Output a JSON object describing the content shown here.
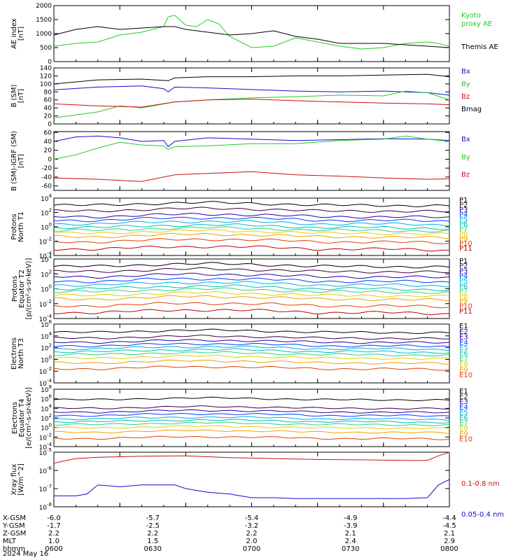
{
  "footer": {
    "date": "2024 May 16"
  },
  "ephemeris": {
    "rows": [
      {
        "label": "X-GSM",
        "values": [
          "-6.0",
          "-5.7",
          "-5.4",
          "-4.9",
          "-4.4"
        ]
      },
      {
        "label": "Y-GSM",
        "values": [
          "-1.7",
          "-2.5",
          "-3.2",
          "-3.9",
          "-4.5"
        ]
      },
      {
        "label": "Z-GSM",
        "values": [
          "2.2",
          "2.2",
          "2.2",
          "2.1",
          "2.1"
        ]
      },
      {
        "label": "MLT",
        "values": [
          "1.0",
          "1.5",
          "2.0",
          "2.4",
          "2.9"
        ]
      },
      {
        "label": "hhmm",
        "values": [
          "0600",
          "0630",
          "0700",
          "0730",
          "0800"
        ]
      }
    ]
  },
  "colors": {
    "green": "#22cc22",
    "black": "#000000",
    "blue": "#1010cc",
    "red": "#cc1010",
    "P": [
      "#000000",
      "#3a0040",
      "#2a00a0",
      "#0040ff",
      "#00b0e0",
      "#00c0b0",
      "#30d080",
      "#e0d000",
      "#f0a000",
      "#e04000",
      "#c00000"
    ],
    "E": [
      "#000000",
      "#3a0040",
      "#2a00a0",
      "#0040ff",
      "#00b0e0",
      "#00c0b0",
      "#30d080",
      "#e0d000",
      "#f0a000",
      "#e04000"
    ]
  },
  "chart_data": [
    {
      "type": "line",
      "ylabel": [
        "AE index",
        "[nT]"
      ],
      "ylim": [
        0,
        2000
      ],
      "yticks": [
        "0",
        "500",
        "1000",
        "1500",
        "2000"
      ],
      "legend_pos": "right",
      "series": [
        {
          "name": "Kyoto proxy AE",
          "legend": [
            "Kyoto",
            "proxy AE"
          ],
          "color": "green",
          "x": [
            0,
            10,
            20,
            30,
            40,
            45,
            50,
            52,
            55,
            60,
            65,
            70,
            75,
            80,
            90,
            100,
            110,
            120,
            130,
            140,
            150,
            160,
            170,
            175,
            180
          ],
          "y": [
            550,
            650,
            700,
            950,
            1050,
            1150,
            1250,
            1600,
            1650,
            1300,
            1250,
            1500,
            1350,
            900,
            500,
            550,
            850,
            700,
            550,
            450,
            500,
            650,
            700,
            650,
            550
          ]
        },
        {
          "name": "Themis AE",
          "legend": [
            "Themis AE"
          ],
          "color": "black",
          "x": [
            0,
            10,
            20,
            30,
            40,
            50,
            55,
            60,
            70,
            80,
            90,
            100,
            110,
            120,
            130,
            140,
            150,
            160,
            170,
            180
          ],
          "y": [
            950,
            1150,
            1250,
            1150,
            1200,
            1250,
            1250,
            1150,
            1050,
            950,
            1000,
            1100,
            900,
            800,
            650,
            650,
            650,
            600,
            550,
            500
          ]
        }
      ]
    },
    {
      "type": "line",
      "ylabel": [
        "B (SM)",
        "[nT]"
      ],
      "ylim": [
        0,
        140
      ],
      "yticks": [
        "0",
        "20",
        "40",
        "60",
        "80",
        "100",
        "120",
        "140"
      ],
      "legend_pos": "right",
      "series": [
        {
          "name": "Bx",
          "color": "blue",
          "x": [
            0,
            20,
            40,
            50,
            52,
            55,
            70,
            90,
            110,
            130,
            150,
            170,
            180
          ],
          "y": [
            85,
            92,
            95,
            88,
            80,
            92,
            90,
            86,
            82,
            80,
            82,
            78,
            72
          ]
        },
        {
          "name": "By",
          "color": "green",
          "x": [
            0,
            20,
            30,
            40,
            55,
            70,
            90,
            110,
            130,
            150,
            160,
            170,
            180
          ],
          "y": [
            15,
            30,
            45,
            40,
            55,
            60,
            65,
            68,
            72,
            70,
            82,
            78,
            60
          ]
        },
        {
          "name": "Bz",
          "color": "red",
          "x": [
            0,
            20,
            40,
            55,
            70,
            90,
            110,
            130,
            150,
            170,
            180
          ],
          "y": [
            50,
            45,
            42,
            55,
            60,
            62,
            58,
            55,
            52,
            50,
            48
          ]
        },
        {
          "name": "Bmag",
          "color": "black",
          "x": [
            0,
            20,
            40,
            52,
            55,
            70,
            90,
            110,
            130,
            150,
            170,
            180
          ],
          "y": [
            100,
            110,
            112,
            108,
            115,
            118,
            118,
            120,
            120,
            122,
            124,
            118
          ]
        }
      ]
    },
    {
      "type": "line",
      "ylabel": [
        "B (SM)-IGRF (SM)",
        "[nT]"
      ],
      "ylim": [
        -70,
        62
      ],
      "yticks": [
        "-60",
        "-40",
        "-20",
        "0",
        "20",
        "40",
        "60"
      ],
      "legend_pos": "right",
      "series": [
        {
          "name": "Bx",
          "color": "blue",
          "x": [
            0,
            10,
            20,
            30,
            40,
            50,
            52,
            55,
            70,
            90,
            110,
            130,
            150,
            170,
            180
          ],
          "y": [
            40,
            50,
            52,
            48,
            40,
            42,
            28,
            40,
            48,
            45,
            42,
            44,
            46,
            45,
            42
          ]
        },
        {
          "name": "By",
          "color": "green",
          "x": [
            0,
            10,
            20,
            30,
            40,
            50,
            52,
            55,
            70,
            90,
            110,
            130,
            150,
            160,
            170,
            180
          ],
          "y": [
            0,
            10,
            25,
            38,
            32,
            30,
            22,
            28,
            30,
            35,
            35,
            42,
            45,
            52,
            45,
            40
          ]
        },
        {
          "name": "Bz",
          "color": "red",
          "x": [
            0,
            20,
            40,
            55,
            70,
            90,
            110,
            130,
            150,
            170,
            180
          ],
          "y": [
            -42,
            -45,
            -50,
            -35,
            -32,
            -28,
            -35,
            -38,
            -42,
            -45,
            -44
          ]
        }
      ]
    },
    {
      "type": "line",
      "log": true,
      "ylabel": [
        "Protons",
        "North T1"
      ],
      "ylim_exp": [
        -4,
        4
      ],
      "yticks": [
        {
          "base": "10",
          "exp": "-4"
        },
        {
          "base": "10",
          "exp": "-2"
        },
        {
          "base": "10",
          "exp": "0"
        },
        {
          "base": "10",
          "exp": "2"
        },
        {
          "base": "10",
          "exp": "4"
        }
      ],
      "legend_pos": "right",
      "series_logbase": [
        3.0,
        2.2,
        1.4,
        0.9,
        0.4,
        -0.1,
        -0.5,
        -0.9,
        -1.4,
        -2.1,
        -3.1
      ],
      "series": [
        {
          "name": "P1",
          "color": "P.0"
        },
        {
          "name": "P2",
          "color": "P.1"
        },
        {
          "name": "P3",
          "color": "P.2"
        },
        {
          "name": "P4",
          "color": "P.3"
        },
        {
          "name": "P5",
          "color": "P.4"
        },
        {
          "name": "P6",
          "color": "P.5"
        },
        {
          "name": "P7",
          "color": "P.6"
        },
        {
          "name": "P8",
          "color": "P.7"
        },
        {
          "name": "P9",
          "color": "P.8"
        },
        {
          "name": "P10",
          "color": "P.9"
        },
        {
          "name": "P11",
          "color": "P.10"
        }
      ]
    },
    {
      "type": "line",
      "log": true,
      "ylabel": [
        "Protons",
        "Equator T2",
        "[p/(cm²-s-sr-keV)]"
      ],
      "ylim_exp": [
        -4,
        4
      ],
      "yticks": [
        {
          "base": "10",
          "exp": "-4"
        },
        {
          "base": "10",
          "exp": "-2"
        },
        {
          "base": "10",
          "exp": "0"
        },
        {
          "base": "10",
          "exp": "2"
        },
        {
          "base": "10",
          "exp": "4"
        }
      ],
      "legend_pos": "right",
      "series_logbase": [
        3.0,
        2.3,
        1.6,
        1.0,
        0.5,
        0.0,
        -0.4,
        -0.9,
        -1.4,
        -2.3,
        -3.2
      ],
      "series": [
        {
          "name": "P1",
          "color": "P.0"
        },
        {
          "name": "P2",
          "color": "P.1"
        },
        {
          "name": "P3",
          "color": "P.2"
        },
        {
          "name": "P4",
          "color": "P.3"
        },
        {
          "name": "P5",
          "color": "P.4"
        },
        {
          "name": "P6",
          "color": "P.5"
        },
        {
          "name": "P7",
          "color": "P.6"
        },
        {
          "name": "P8",
          "color": "P.7"
        },
        {
          "name": "P9",
          "color": "P.8"
        },
        {
          "name": "P10",
          "color": "P.9"
        },
        {
          "name": "P11",
          "color": "P.10"
        }
      ]
    },
    {
      "type": "line",
      "log": true,
      "ylabel": [
        "Electrons",
        "North T3"
      ],
      "ylim_exp": [
        -4,
        6
      ],
      "yticks": [
        {
          "base": "10",
          "exp": "-4"
        },
        {
          "base": "10",
          "exp": "-2"
        },
        {
          "base": "10",
          "exp": "0"
        },
        {
          "base": "10",
          "exp": "2"
        },
        {
          "base": "10",
          "exp": "4"
        },
        {
          "base": "10",
          "exp": "6"
        }
      ],
      "legend_pos": "right",
      "series_logbase": [
        4.6,
        3.6,
        2.9,
        2.3,
        1.8,
        1.3,
        0.8,
        0.2,
        -0.6,
        -1.6
      ],
      "series": [
        {
          "name": "E1",
          "color": "E.0"
        },
        {
          "name": "E2",
          "color": "E.1"
        },
        {
          "name": "E3",
          "color": "E.2"
        },
        {
          "name": "E4",
          "color": "E.3"
        },
        {
          "name": "E5",
          "color": "E.4"
        },
        {
          "name": "E6",
          "color": "E.5"
        },
        {
          "name": "E7",
          "color": "E.6"
        },
        {
          "name": "E8",
          "color": "E.7"
        },
        {
          "name": "E9",
          "color": "E.8"
        },
        {
          "name": "E10",
          "color": "E.9"
        }
      ]
    },
    {
      "type": "line",
      "log": true,
      "ylabel": [
        "Electrons",
        "Equator T4",
        "[e/(cm²-s-sr-keV)]"
      ],
      "ylim_exp": [
        -4,
        8
      ],
      "yticks": [
        {
          "base": "10",
          "exp": "-4"
        },
        {
          "base": "10",
          "exp": "-2"
        },
        {
          "base": "10",
          "exp": "0"
        },
        {
          "base": "10",
          "exp": "2"
        },
        {
          "base": "10",
          "exp": "4"
        },
        {
          "base": "10",
          "exp": "6"
        },
        {
          "base": "10",
          "exp": "8"
        }
      ],
      "legend_pos": "right",
      "series_logbase": [
        5.8,
        4.0,
        3.2,
        2.5,
        1.8,
        1.2,
        0.6,
        -0.1,
        -1.0,
        -2.3
      ],
      "series": [
        {
          "name": "E1",
          "color": "E.0"
        },
        {
          "name": "E2",
          "color": "E.1"
        },
        {
          "name": "E3",
          "color": "E.2"
        },
        {
          "name": "E4",
          "color": "E.3"
        },
        {
          "name": "E5",
          "color": "E.4"
        },
        {
          "name": "E6",
          "color": "E.5"
        },
        {
          "name": "E7",
          "color": "E.6"
        },
        {
          "name": "E8",
          "color": "E.7"
        },
        {
          "name": "E9",
          "color": "E.8"
        },
        {
          "name": "E10",
          "color": "E.9"
        }
      ]
    },
    {
      "type": "line",
      "log": true,
      "ylabel": [
        "Xray flux",
        "[W/m^2]"
      ],
      "ylim_exp": [
        -8,
        -5
      ],
      "yticks": [
        {
          "base": "10",
          "exp": "-8"
        },
        {
          "base": "10",
          "exp": "-7"
        },
        {
          "base": "10",
          "exp": "-6"
        },
        {
          "base": "10",
          "exp": "-5"
        }
      ],
      "legend_pos": "right",
      "series": [
        {
          "name": "0.1-0.8 nm",
          "color": "red",
          "x": [
            0,
            10,
            20,
            40,
            60,
            80,
            100,
            120,
            140,
            160,
            170,
            175,
            180
          ],
          "logy": [
            -5.6,
            -5.35,
            -5.28,
            -5.22,
            -5.2,
            -5.3,
            -5.35,
            -5.4,
            -5.42,
            -5.45,
            -5.45,
            -5.2,
            -5.0
          ]
        },
        {
          "name": "0.05-0.4 nm",
          "color": "blue",
          "x": [
            0,
            10,
            15,
            20,
            30,
            40,
            50,
            55,
            60,
            70,
            80,
            90,
            100,
            110,
            120,
            140,
            160,
            170,
            175,
            180
          ],
          "logy": [
            -7.4,
            -7.4,
            -7.3,
            -6.8,
            -6.9,
            -6.8,
            -6.8,
            -6.8,
            -7.0,
            -7.2,
            -7.3,
            -7.5,
            -7.5,
            -7.55,
            -7.55,
            -7.55,
            -7.55,
            -7.5,
            -6.8,
            -6.5
          ]
        }
      ]
    }
  ]
}
